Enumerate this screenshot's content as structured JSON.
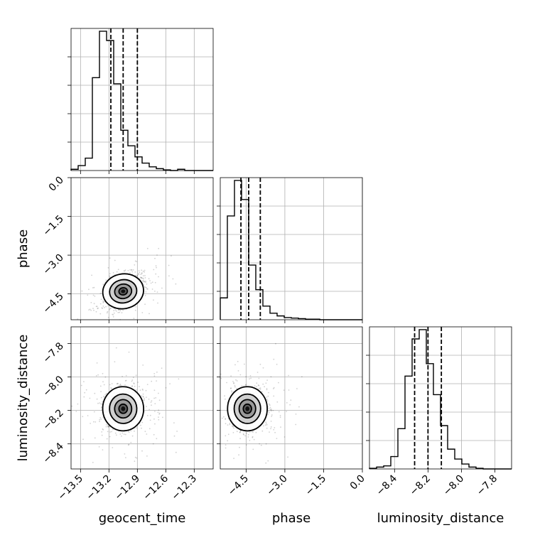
{
  "chart_data": {
    "type": "corner",
    "parameters": [
      "geocent_time",
      "phase",
      "luminosity_distance"
    ],
    "grid": true,
    "axes": {
      "geocent_time": {
        "label": "geocent_time",
        "range": [
          -13.6,
          -12.1
        ],
        "ticks": [
          -13.5,
          -13.2,
          -12.9,
          -12.6,
          -12.3
        ],
        "tick_labels": [
          "−13.5",
          "−13.2",
          "−12.9",
          "−12.6",
          "−12.3"
        ],
        "quantiles": [
          -13.18,
          -13.05,
          -12.9
        ]
      },
      "phase": {
        "label": "phase",
        "range": [
          -5.5,
          0.0
        ],
        "ticks": [
          -4.5,
          -3.0,
          -1.5,
          0.0
        ],
        "tick_labels": [
          "−4.5",
          "−3.0",
          "−1.5",
          "0.0"
        ],
        "quantiles": [
          -4.7,
          -4.4,
          -3.95
        ]
      },
      "luminosity_distance": {
        "label": "luminosity_distance",
        "range": [
          -8.55,
          -7.7
        ],
        "ticks": [
          -8.4,
          -8.2,
          -8.0,
          -7.8
        ],
        "tick_labels": [
          "−8.4",
          "−8.2",
          "−8.0",
          "−7.8"
        ],
        "quantiles": [
          -8.28,
          -8.2,
          -8.12
        ]
      }
    },
    "histograms": {
      "geocent_time": [
        2,
        8,
        20,
        150,
        225,
        210,
        140,
        65,
        40,
        22,
        12,
        6,
        3,
        1,
        0,
        2,
        0,
        0,
        0,
        0
      ],
      "phase": [
        40,
        190,
        255,
        220,
        100,
        55,
        25,
        12,
        7,
        4,
        3,
        2,
        1,
        1,
        0,
        0,
        0,
        0,
        0,
        0
      ],
      "luminosity_distance": [
        1,
        3,
        5,
        20,
        65,
        150,
        210,
        225,
        170,
        120,
        70,
        32,
        16,
        8,
        3,
        1,
        0,
        0,
        0,
        0
      ]
    },
    "pairs": [
      {
        "x": "geocent_time",
        "y": "phase",
        "center": [
          -13.05,
          -4.4
        ],
        "spread": [
          0.09,
          0.28
        ],
        "rho": 0.45
      },
      {
        "x": "geocent_time",
        "y": "luminosity_distance",
        "center": [
          -13.05,
          -8.19
        ],
        "spread": [
          0.09,
          0.055
        ],
        "rho": 0.1
      },
      {
        "x": "phase",
        "y": "luminosity_distance",
        "center": [
          -4.45,
          -8.19
        ],
        "spread": [
          0.32,
          0.055
        ],
        "rho": 0.0
      }
    ]
  }
}
